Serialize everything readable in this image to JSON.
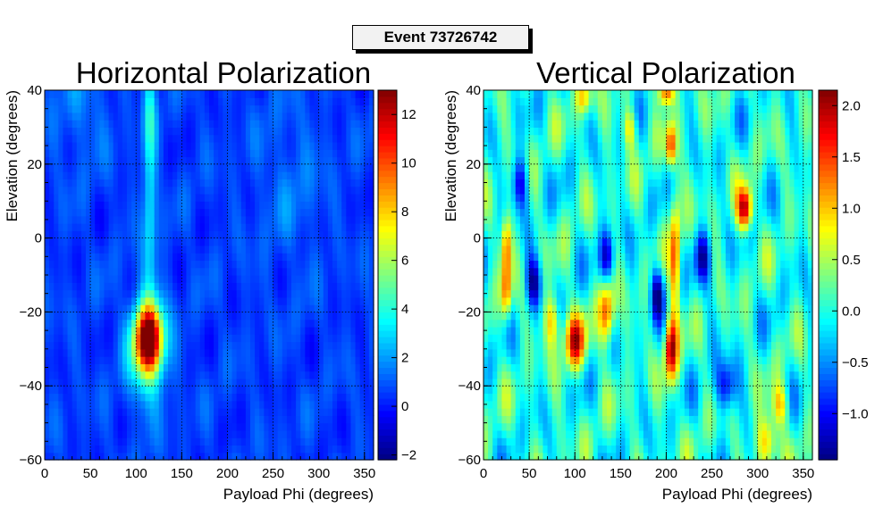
{
  "event_label": "Event 73726742",
  "chart_data": [
    {
      "type": "heatmap",
      "title": "Horizontal Polarization",
      "xlabel": "Payload Phi (degrees)",
      "ylabel": "Elevation (degrees)",
      "xlim": [
        0,
        360
      ],
      "ylim": [
        -60,
        40
      ],
      "xticks": [
        0,
        50,
        100,
        150,
        200,
        250,
        300,
        350
      ],
      "yticks": [
        -60,
        -40,
        -20,
        0,
        20,
        40
      ],
      "zlim": [
        -2.2,
        13
      ],
      "zticks": [
        -2,
        0,
        2,
        4,
        6,
        8,
        10,
        12
      ],
      "grid": true,
      "peak": {
        "phi": 115,
        "elevation": -27,
        "value": 12.8
      },
      "hot_spots": [
        {
          "phi": 114,
          "elevation": -27,
          "value": 12.0,
          "spread": [
            10,
            6
          ]
        },
        {
          "phi": 112,
          "elevation": -30,
          "value": 5.0,
          "spread": [
            14,
            10
          ]
        },
        {
          "phi": 115,
          "elevation": 35,
          "value": 3.5,
          "spread": [
            5,
            10
          ]
        },
        {
          "phi": 115,
          "elevation": 10,
          "value": 2.6,
          "spread": [
            5,
            12
          ]
        },
        {
          "phi": 115,
          "elevation": -5,
          "value": 1.8,
          "spread": [
            5,
            18
          ]
        },
        {
          "phi": 40,
          "elevation": 35,
          "value": 1.6,
          "spread": [
            20,
            10
          ]
        },
        {
          "phi": 270,
          "elevation": 15,
          "value": 1.4,
          "spread": [
            25,
            15
          ]
        }
      ],
      "background_level": 0.6
    },
    {
      "type": "heatmap",
      "title": "Vertical Polarization",
      "xlabel": "Payload Phi (degrees)",
      "ylabel": "Elevation (degrees)",
      "xlim": [
        0,
        360
      ],
      "ylim": [
        -60,
        40
      ],
      "xticks": [
        0,
        50,
        100,
        150,
        200,
        250,
        300,
        350
      ],
      "yticks": [
        -60,
        -40,
        -20,
        0,
        20,
        40
      ],
      "zlim": [
        -1.45,
        2.15
      ],
      "zticks": [
        -1.0,
        -0.5,
        0.0,
        0.5,
        1.0,
        1.5,
        2.0
      ],
      "zticklabels": [
        "−1.0",
        "−0.5",
        "0.0",
        "0.5",
        "1.0",
        "1.5",
        "2.0"
      ],
      "grid": true,
      "hot_spots": [
        {
          "phi": 286,
          "elevation": 8,
          "value": 2.0,
          "spread": [
            6,
            4
          ]
        },
        {
          "phi": 205,
          "elevation": -30,
          "value": 1.9,
          "spread": [
            5,
            6
          ]
        },
        {
          "phi": 100,
          "elevation": -28,
          "value": 1.7,
          "spread": [
            8,
            5
          ]
        },
        {
          "phi": 135,
          "elevation": -20,
          "value": 1.5,
          "spread": [
            6,
            6
          ]
        },
        {
          "phi": 205,
          "elevation": 25,
          "value": 1.5,
          "spread": [
            4,
            4
          ]
        },
        {
          "phi": 210,
          "elevation": -5,
          "value": 1.4,
          "spread": [
            4,
            12
          ]
        },
        {
          "phi": 25,
          "elevation": -2,
          "value": 1.3,
          "spread": [
            4,
            6
          ]
        },
        {
          "phi": 25,
          "elevation": -15,
          "value": 1.2,
          "spread": [
            4,
            5
          ]
        },
        {
          "phi": 200,
          "elevation": 39,
          "value": 1.5,
          "spread": [
            6,
            2
          ]
        },
        {
          "phi": 310,
          "elevation": -55,
          "value": 1.2,
          "spread": [
            8,
            5
          ]
        },
        {
          "phi": 75,
          "elevation": -22,
          "value": 1.1,
          "spread": [
            6,
            5
          ]
        },
        {
          "phi": 325,
          "elevation": -45,
          "value": 1.0,
          "spread": [
            6,
            4
          ]
        },
        {
          "phi": 160,
          "elevation": 30,
          "value": 1.0,
          "spread": [
            5,
            4
          ]
        },
        {
          "phi": 110,
          "elevation": 38,
          "value": 1.0,
          "spread": [
            6,
            3
          ]
        }
      ],
      "cold_spots": [
        {
          "phi": 55,
          "elevation": -12,
          "value": -1.3,
          "spread": [
            6,
            5
          ]
        },
        {
          "phi": 135,
          "elevation": -5,
          "value": -1.2,
          "spread": [
            6,
            5
          ]
        },
        {
          "phi": 190,
          "elevation": -15,
          "value": -1.3,
          "spread": [
            5,
            5
          ]
        },
        {
          "phi": 240,
          "elevation": -5,
          "value": -1.2,
          "spread": [
            6,
            5
          ]
        },
        {
          "phi": 265,
          "elevation": -40,
          "value": -1.1,
          "spread": [
            8,
            5
          ]
        },
        {
          "phi": 40,
          "elevation": 15,
          "value": -1.1,
          "spread": [
            6,
            5
          ]
        }
      ],
      "background_level": 0.0
    }
  ]
}
